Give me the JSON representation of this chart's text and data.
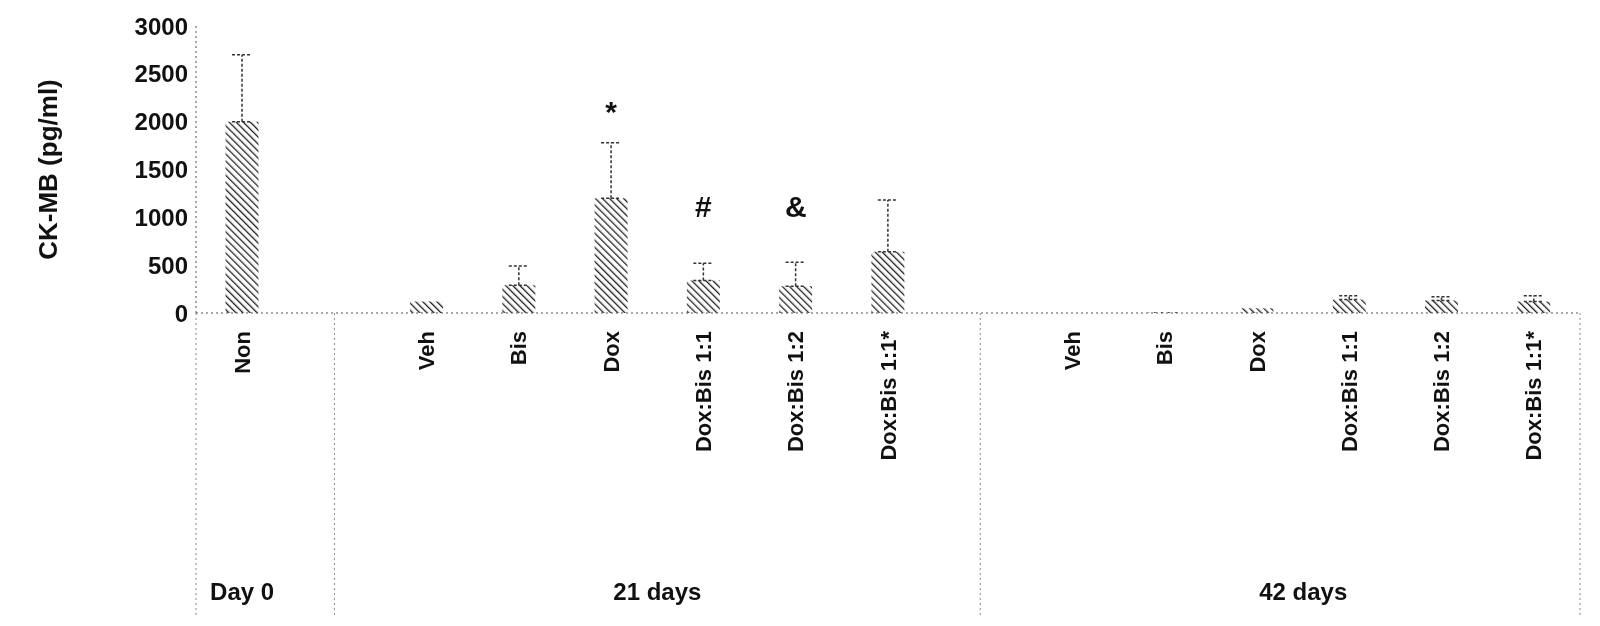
{
  "chart_data": {
    "type": "bar",
    "ylabel": "CK-MB (pg/ml)",
    "categories": [
      "Non",
      null,
      "Veh",
      "Bis",
      "Dox",
      "Dox:Bis 1:1",
      "Dox:Bis 1:2",
      "Dox:Bis 1:1*",
      null,
      "Veh",
      "Bis",
      "Dox",
      "Dox:Bis 1:1",
      "Dox:Bis 1:2",
      "Dox:Bis 1:1*"
    ],
    "values": [
      2000,
      null,
      120,
      290,
      1200,
      340,
      280,
      640,
      null,
      0,
      10,
      50,
      140,
      130,
      120
    ],
    "errors": [
      [
        2000,
        2700
      ],
      null,
      null,
      [
        290,
        490
      ],
      [
        1200,
        1780
      ],
      [
        340,
        520
      ],
      [
        280,
        530
      ],
      [
        640,
        1180
      ],
      null,
      null,
      null,
      null,
      [
        140,
        180
      ],
      [
        130,
        170
      ],
      [
        120,
        180
      ]
    ],
    "color": "#222222",
    "ylim": [
      0,
      3000
    ],
    "yticks": [
      0,
      500,
      1000,
      1500,
      2000,
      2500,
      3000
    ],
    "grid": false,
    "legend": false,
    "annotations": [
      "Day 0",
      "21 days",
      "42 days",
      "*",
      "#",
      "&"
    ]
  }
}
